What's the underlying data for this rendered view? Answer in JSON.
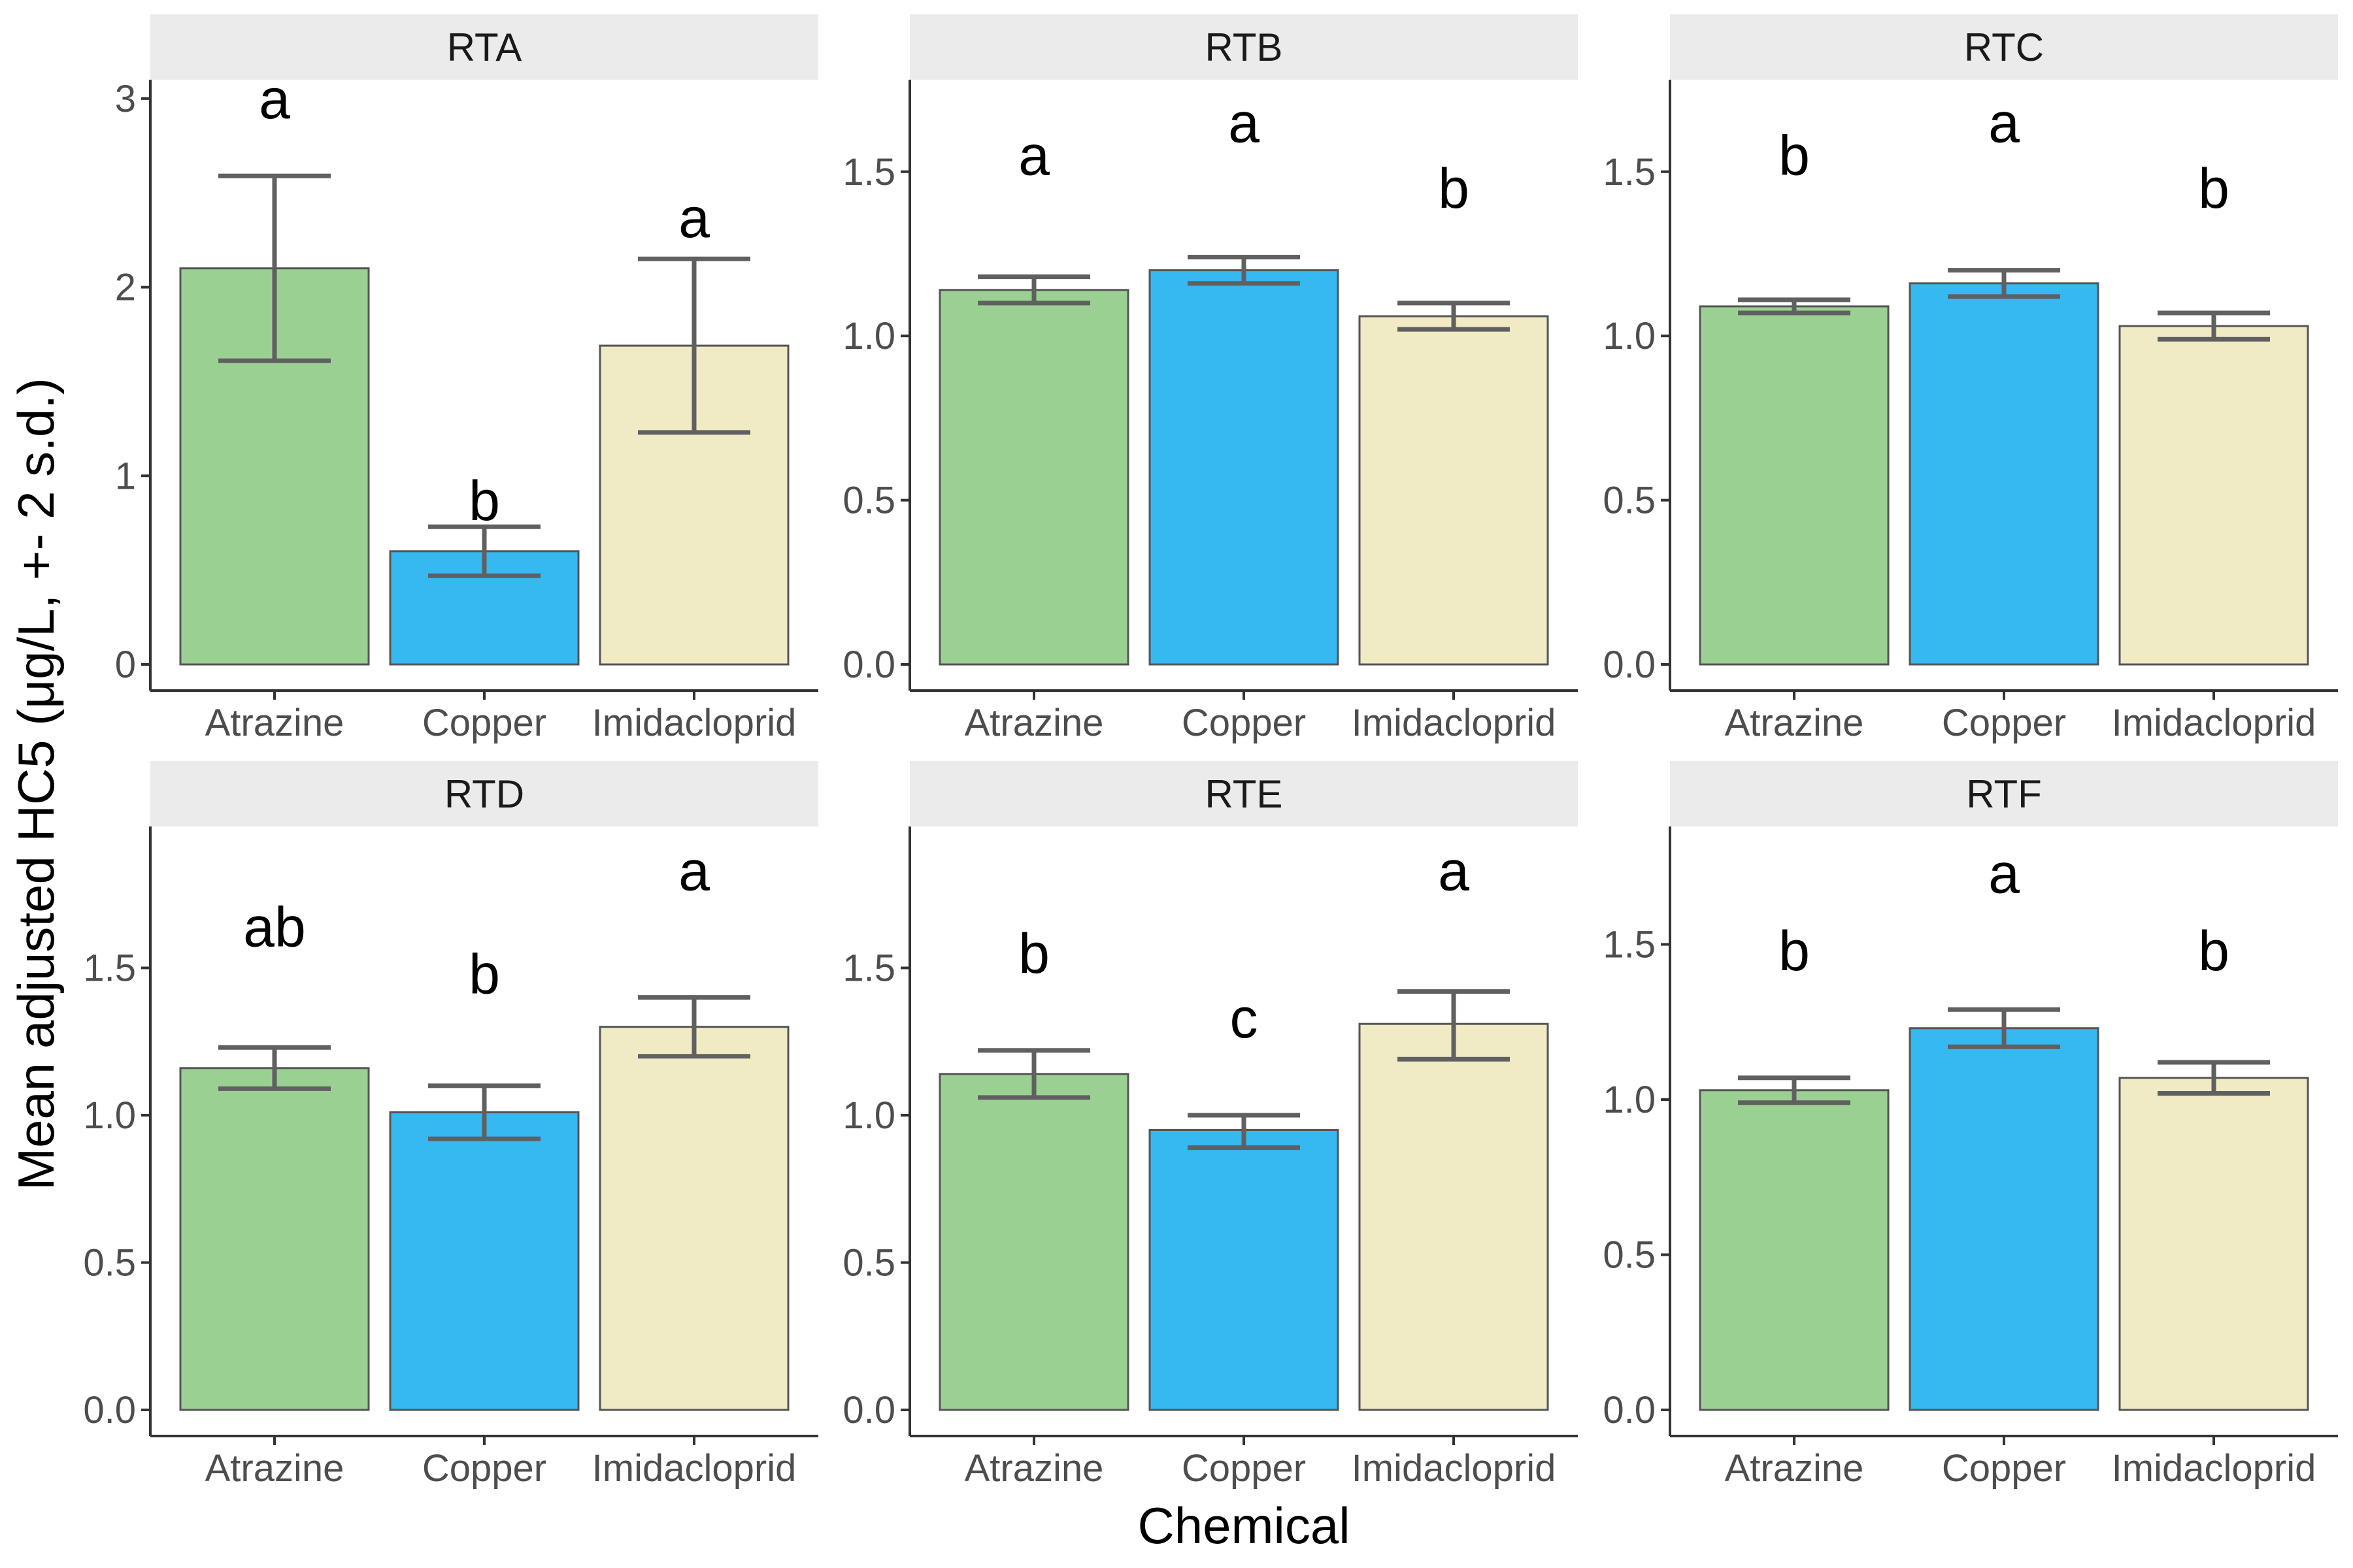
{
  "chart_data": {
    "type": "bar",
    "layout": "facet-grid 2x3",
    "xlabel": "Chemical",
    "ylabel": "Mean adjusted HC5 (μg/L, +- 2 s.d.)",
    "categories": [
      "Atrazine",
      "Copper",
      "Imidacloprid"
    ],
    "colors": {
      "Atrazine": "#9ad192",
      "Copper": "#36b8f1",
      "Imidacloprid": "#f0ebc5"
    },
    "errorbar_color": "#606060",
    "grid": false,
    "legend": "none",
    "panels": [
      {
        "title": "RTA",
        "ylim": [
          0,
          3.1
        ],
        "yticks": [
          0,
          1,
          2,
          3
        ],
        "yticklabels": [
          "0",
          "1",
          "2",
          "3"
        ],
        "values": [
          2.1,
          0.6,
          1.69
        ],
        "err_low": [
          1.61,
          0.47,
          1.23
        ],
        "err_high": [
          2.59,
          0.73,
          2.15
        ],
        "letters": [
          "a",
          "b",
          "a"
        ],
        "letter_y": [
          3.0,
          0.87,
          2.37
        ]
      },
      {
        "title": "RTB",
        "ylim": [
          0,
          1.78
        ],
        "yticks": [
          0,
          0.5,
          1.0,
          1.5
        ],
        "yticklabels": [
          "0.0",
          "0.5",
          "1.0",
          "1.5"
        ],
        "values": [
          1.14,
          1.2,
          1.06
        ],
        "err_low": [
          1.1,
          1.16,
          1.02
        ],
        "err_high": [
          1.18,
          1.24,
          1.1
        ],
        "letters": [
          "a",
          "a",
          "b"
        ],
        "letter_y": [
          1.55,
          1.65,
          1.45
        ]
      },
      {
        "title": "RTC",
        "ylim": [
          0,
          1.78
        ],
        "yticks": [
          0,
          0.5,
          1.0,
          1.5
        ],
        "yticklabels": [
          "0.0",
          "0.5",
          "1.0",
          "1.5"
        ],
        "values": [
          1.09,
          1.16,
          1.03
        ],
        "err_low": [
          1.07,
          1.12,
          0.99
        ],
        "err_high": [
          1.11,
          1.2,
          1.07
        ],
        "letters": [
          "b",
          "a",
          "b"
        ],
        "letter_y": [
          1.55,
          1.65,
          1.45
        ]
      },
      {
        "title": "RTD",
        "ylim": [
          0,
          1.98
        ],
        "yticks": [
          0,
          0.5,
          1.0,
          1.5
        ],
        "yticklabels": [
          "0.0",
          "0.5",
          "1.0",
          "1.5"
        ],
        "values": [
          1.16,
          1.01,
          1.3
        ],
        "err_low": [
          1.09,
          0.92,
          1.2
        ],
        "err_high": [
          1.23,
          1.1,
          1.4
        ],
        "letters": [
          "ab",
          "b",
          "a"
        ],
        "letter_y": [
          1.64,
          1.48,
          1.83
        ]
      },
      {
        "title": "RTE",
        "ylim": [
          0,
          1.98
        ],
        "yticks": [
          0,
          0.5,
          1.0,
          1.5
        ],
        "yticklabels": [
          "0.0",
          "0.5",
          "1.0",
          "1.5"
        ],
        "values": [
          1.14,
          0.95,
          1.31
        ],
        "err_low": [
          1.06,
          0.89,
          1.19
        ],
        "err_high": [
          1.22,
          1.0,
          1.42
        ],
        "letters": [
          "b",
          "c",
          "a"
        ],
        "letter_y": [
          1.55,
          1.33,
          1.83
        ]
      },
      {
        "title": "RTF",
        "ylim": [
          0,
          1.88
        ],
        "yticks": [
          0,
          0.5,
          1.0,
          1.5
        ],
        "yticklabels": [
          "0.0",
          "0.5",
          "1.0",
          "1.5"
        ],
        "values": [
          1.03,
          1.23,
          1.07
        ],
        "err_low": [
          0.99,
          1.17,
          1.02
        ],
        "err_high": [
          1.07,
          1.29,
          1.12
        ],
        "letters": [
          "b",
          "a",
          "b"
        ],
        "letter_y": [
          1.48,
          1.73,
          1.48
        ]
      }
    ]
  }
}
